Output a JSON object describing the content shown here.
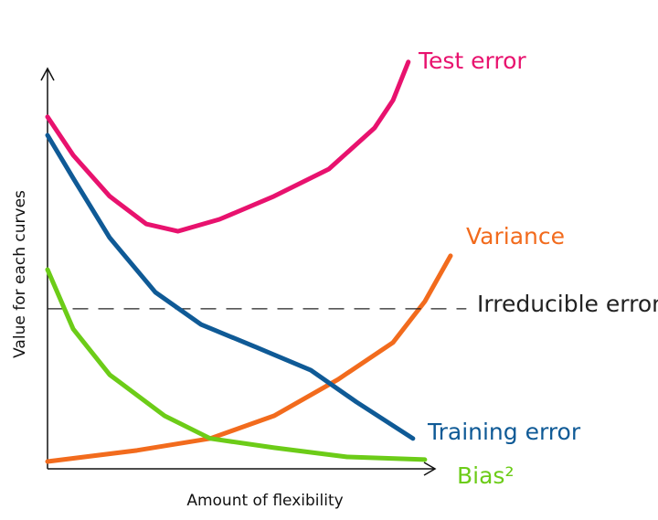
{
  "chart_data": {
    "type": "line",
    "xlabel": "Amount of flexibility",
    "ylabel": "Value for each curves",
    "xlim": [
      0,
      110
    ],
    "ylim": [
      0,
      110
    ],
    "series": [
      {
        "name": "Test error",
        "color": "#e8126e",
        "style": "solid",
        "x": [
          0,
          6.7,
          16.2,
          25.7,
          34,
          44.8,
          59,
          73.3,
          85.2,
          90,
          94
        ],
        "values": [
          91.7,
          81.7,
          71,
          63.8,
          61.9,
          65,
          71,
          78.1,
          88.8,
          96,
          106
        ]
      },
      {
        "name": "Variance",
        "color": "#f26b1d",
        "style": "solid",
        "x": [
          0,
          23.3,
          42.4,
          59,
          75.7,
          90,
          98.3,
          105
        ],
        "values": [
          1.9,
          4.8,
          7.9,
          13.8,
          23.3,
          32.9,
          43.6,
          55.5
        ]
      },
      {
        "name": "Irreducible error",
        "color": "#222222",
        "style": "dashed",
        "x": [
          0,
          109
        ],
        "values": [
          41.7,
          41.7
        ]
      },
      {
        "name": "Training error",
        "color": "#0f5a96",
        "style": "solid",
        "x": [
          0,
          6.7,
          16.2,
          28.1,
          40,
          54.3,
          68.6,
          80.5,
          95.2
        ],
        "values": [
          86.9,
          75.7,
          60.2,
          46,
          37.6,
          31.7,
          25.7,
          17.4,
          7.9
        ]
      },
      {
        "name": "Bias²",
        "color": "#6ccc18",
        "style": "solid",
        "x": [
          0,
          6.7,
          16.2,
          30.5,
          42.4,
          59,
          78.1,
          98.3
        ],
        "values": [
          51.9,
          36.4,
          24.5,
          13.8,
          7.9,
          5.5,
          3.1,
          2.4
        ]
      }
    ]
  }
}
